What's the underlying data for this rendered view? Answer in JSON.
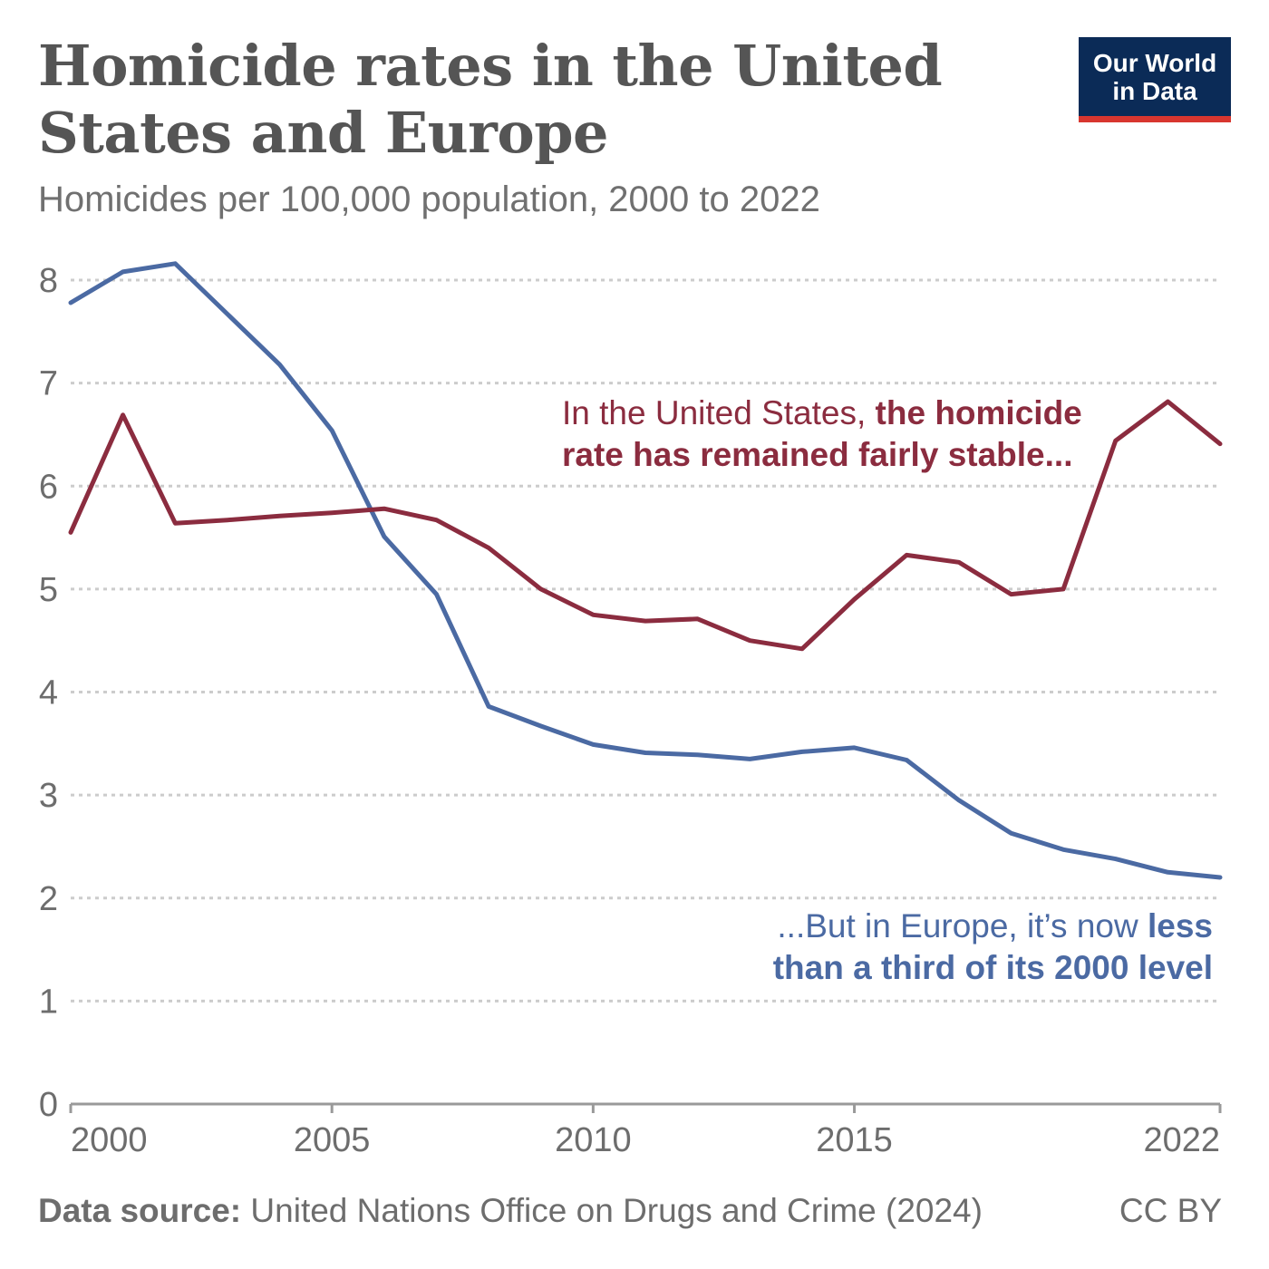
{
  "header": {
    "title": "Homicide rates in the United States and Europe",
    "subtitle": "Homicides per 100,000 population, 2000 to 2022"
  },
  "logo": {
    "line1": "Our World",
    "line2": "in Data"
  },
  "footer": {
    "source_label": "Data source:",
    "source_text": "United Nations Office on Drugs and Crime (2024)",
    "license": "CC BY"
  },
  "colors": {
    "us": "#8b2c3f",
    "europe": "#4b6aa3",
    "grid": "#cccccc",
    "axis": "#999999"
  },
  "chart_data": {
    "type": "line",
    "title": "Homicide rates in the United States and Europe",
    "subtitle": "Homicides per 100,000 population, 2000 to 2022",
    "xlim": [
      2000,
      2022
    ],
    "ylim": [
      0,
      8
    ],
    "x_ticks": [
      "2000",
      "2005",
      "2010",
      "2015",
      "2022"
    ],
    "y_ticks": [
      "0",
      "1",
      "2",
      "3",
      "4",
      "5",
      "6",
      "7",
      "8"
    ],
    "grid": "horizontal dotted",
    "x": [
      2000,
      2001,
      2002,
      2003,
      2004,
      2005,
      2006,
      2007,
      2008,
      2009,
      2010,
      2011,
      2012,
      2013,
      2014,
      2015,
      2016,
      2017,
      2018,
      2019,
      2020,
      2021,
      2022
    ],
    "series": [
      {
        "key": "europe",
        "values": [
          7.78,
          8.08,
          8.16,
          7.67,
          7.18,
          6.54,
          5.51,
          4.95,
          3.86,
          3.67,
          3.49,
          3.41,
          3.39,
          3.35,
          3.42,
          3.46,
          3.34,
          2.95,
          2.63,
          2.47,
          2.38,
          2.25,
          2.2
        ]
      },
      {
        "key": "us",
        "values": [
          5.55,
          6.69,
          5.64,
          5.67,
          5.71,
          5.74,
          5.78,
          5.67,
          5.4,
          5.0,
          4.75,
          4.69,
          4.71,
          4.5,
          4.42,
          4.9,
          5.33,
          5.26,
          4.95,
          5.0,
          6.44,
          6.82,
          6.41
        ]
      }
    ],
    "annotations": [
      {
        "key": "us",
        "line1_normal": "In the United States, ",
        "line1_bold": "the homicide",
        "line2_bold": "rate has remained fairly stable..."
      },
      {
        "key": "europe",
        "line1_normal": "...But in Europe, it’s now ",
        "line1_bold": "less",
        "line2_bold": "than a third of its 2000 level"
      }
    ]
  }
}
